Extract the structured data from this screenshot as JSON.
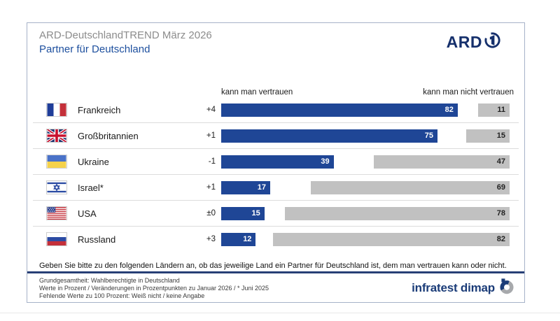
{
  "header": {
    "title": "ARD-DeutschlandTREND März 2026",
    "subtitle": "Partner für Deutschland",
    "ard_logo_text": "ARD"
  },
  "columns": {
    "trust_header": "kann man vertrauen",
    "no_trust_header": "kann man nicht vertrauen"
  },
  "rows": [
    {
      "flag": "fr",
      "country": "Frankreich",
      "change": "+4",
      "trust": 82,
      "no_trust": 11
    },
    {
      "flag": "gb",
      "country": "Großbritannien",
      "change": "+1",
      "trust": 75,
      "no_trust": 15
    },
    {
      "flag": "ua",
      "country": "Ukraine",
      "change": "-1",
      "trust": 39,
      "no_trust": 47
    },
    {
      "flag": "il",
      "country": "Israel*",
      "change": "+1",
      "trust": 17,
      "no_trust": 69
    },
    {
      "flag": "us",
      "country": "USA",
      "change": "±0",
      "trust": 15,
      "no_trust": 78
    },
    {
      "flag": "ru",
      "country": "Russland",
      "change": "+3",
      "trust": 12,
      "no_trust": 82
    }
  ],
  "question": "Geben Sie bitte zu den folgenden Ländern an, ob das jeweilige Land ein Partner für Deutschland ist, dem man vertrauen kann oder nicht.",
  "footnotes": [
    "Grundgesamtheit: Wahlberechtigte in Deutschland",
    "Werte in Prozent / Veränderungen in Prozentpunkten zu Januar 2026 / * Juni 2025",
    "Fehlende Werte zu 100 Prozent: Weiß nicht / keine Angabe"
  ],
  "branding": {
    "infratest_logo_text": "infratest dimap"
  },
  "colors": {
    "bar_trust": "#1F4696",
    "bar_no_trust": "#C1C1C1",
    "accent_navy": "#16306C",
    "subtitle_blue": "#1D4F9E",
    "rule_navy": "#273F76"
  },
  "chart_data": {
    "type": "bar",
    "orientation": "horizontal",
    "title": "ARD-DeutschlandTREND März 2026 — Partner für Deutschland",
    "categories": [
      "Frankreich",
      "Großbritannien",
      "Ukraine",
      "Israel*",
      "USA",
      "Russland"
    ],
    "series": [
      {
        "name": "kann man vertrauen",
        "values": [
          82,
          75,
          39,
          17,
          15,
          12
        ],
        "color": "#1F4696"
      },
      {
        "name": "kann man nicht vertrauen",
        "values": [
          11,
          15,
          47,
          69,
          78,
          82
        ],
        "color": "#C1C1C1"
      }
    ],
    "change_vs_previous": {
      "reference": "Januar 2026",
      "values": [
        "+4",
        "+1",
        "-1",
        "+1",
        "±0",
        "+3"
      ]
    },
    "unit": "percent",
    "xlim": [
      0,
      100
    ],
    "legend_position": "column-headers",
    "grid": false,
    "note": "Fehlende Werte zu 100 Prozent: Weiß nicht / keine Angabe"
  }
}
